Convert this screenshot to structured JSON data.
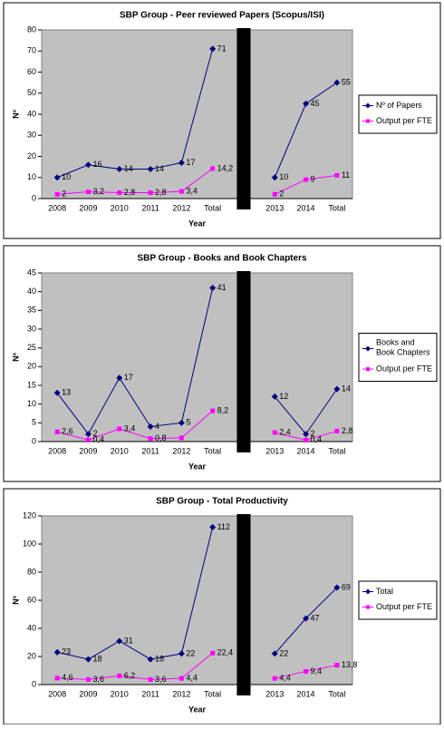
{
  "chart_data": [
    {
      "type": "line",
      "title": "SBP Group - Peer reviewed Papers (Scopus/ISI)",
      "x_label": "Year",
      "y_label": "Nº",
      "categories": [
        "2008",
        "2009",
        "2010",
        "2011",
        "2012",
        "Total",
        null,
        "2013",
        "2014",
        "Total"
      ],
      "ylim": [
        0,
        80
      ],
      "yticks": [
        0,
        10,
        20,
        30,
        40,
        50,
        60,
        70,
        80
      ],
      "grid": false,
      "legend": "right",
      "series": [
        {
          "name": "Nº of Papers",
          "color": "#000080",
          "marker": "diamond",
          "values": [
            10,
            16,
            14,
            14,
            17,
            71,
            null,
            10,
            45,
            55
          ]
        },
        {
          "name": "Output per FTE",
          "color": "#ff00ff",
          "marker": "square",
          "values": [
            2,
            3.2,
            2.8,
            2.8,
            3.4,
            14.2,
            null,
            2,
            9,
            11
          ],
          "value_labels": [
            "2",
            "3,2",
            "2,8",
            "2,8",
            "3,4",
            "14,2",
            null,
            "2",
            "9",
            "11"
          ]
        }
      ]
    },
    {
      "type": "line",
      "title": "SBP Group - Books and Book Chapters",
      "x_label": "Year",
      "y_label": "Nº",
      "categories": [
        "2008",
        "2009",
        "2010",
        "2011",
        "2012",
        "Total",
        null,
        "2013",
        "2014",
        "Total"
      ],
      "ylim": [
        0,
        45
      ],
      "yticks": [
        0,
        5,
        10,
        15,
        20,
        25,
        30,
        35,
        40,
        45
      ],
      "grid": false,
      "legend": "right",
      "series": [
        {
          "name": "Books and Book Chapters",
          "color": "#000080",
          "marker": "diamond",
          "values": [
            13,
            2,
            17,
            4,
            5,
            41,
            null,
            12,
            2,
            14
          ]
        },
        {
          "name": "Output per FTE",
          "color": "#ff00ff",
          "marker": "square",
          "values": [
            2.6,
            0.4,
            3.4,
            0.8,
            1,
            8.2,
            null,
            2.4,
            0.4,
            2.8
          ],
          "value_labels": [
            "2,6",
            "0,4",
            "3,4",
            "0,8",
            null,
            "8,2",
            null,
            "2,4",
            "0,4",
            "2,8"
          ]
        }
      ]
    },
    {
      "type": "line",
      "title": "SBP Group - Total Productivity",
      "x_label": "Year",
      "y_label": "Nº",
      "categories": [
        "2008",
        "2009",
        "2010",
        "2011",
        "2012",
        "Total",
        null,
        "2013",
        "2014",
        "Total"
      ],
      "ylim": [
        0,
        120
      ],
      "yticks": [
        0,
        20,
        40,
        60,
        80,
        100,
        120
      ],
      "grid": false,
      "legend": "right",
      "series": [
        {
          "name": "Total",
          "color": "#000080",
          "marker": "diamond",
          "values": [
            23,
            18,
            31,
            18,
            22,
            112,
            null,
            22,
            47,
            69
          ]
        },
        {
          "name": "Output per FTE",
          "color": "#ff00ff",
          "marker": "square",
          "values": [
            4.6,
            3.6,
            6.2,
            3.6,
            4.4,
            22.4,
            null,
            4.4,
            9.4,
            13.8
          ],
          "value_labels": [
            "4,6",
            "3,6",
            "6,2",
            "3,6",
            "4,4",
            "22,4",
            null,
            "4,4",
            "9,4",
            "13,8"
          ]
        }
      ]
    }
  ]
}
